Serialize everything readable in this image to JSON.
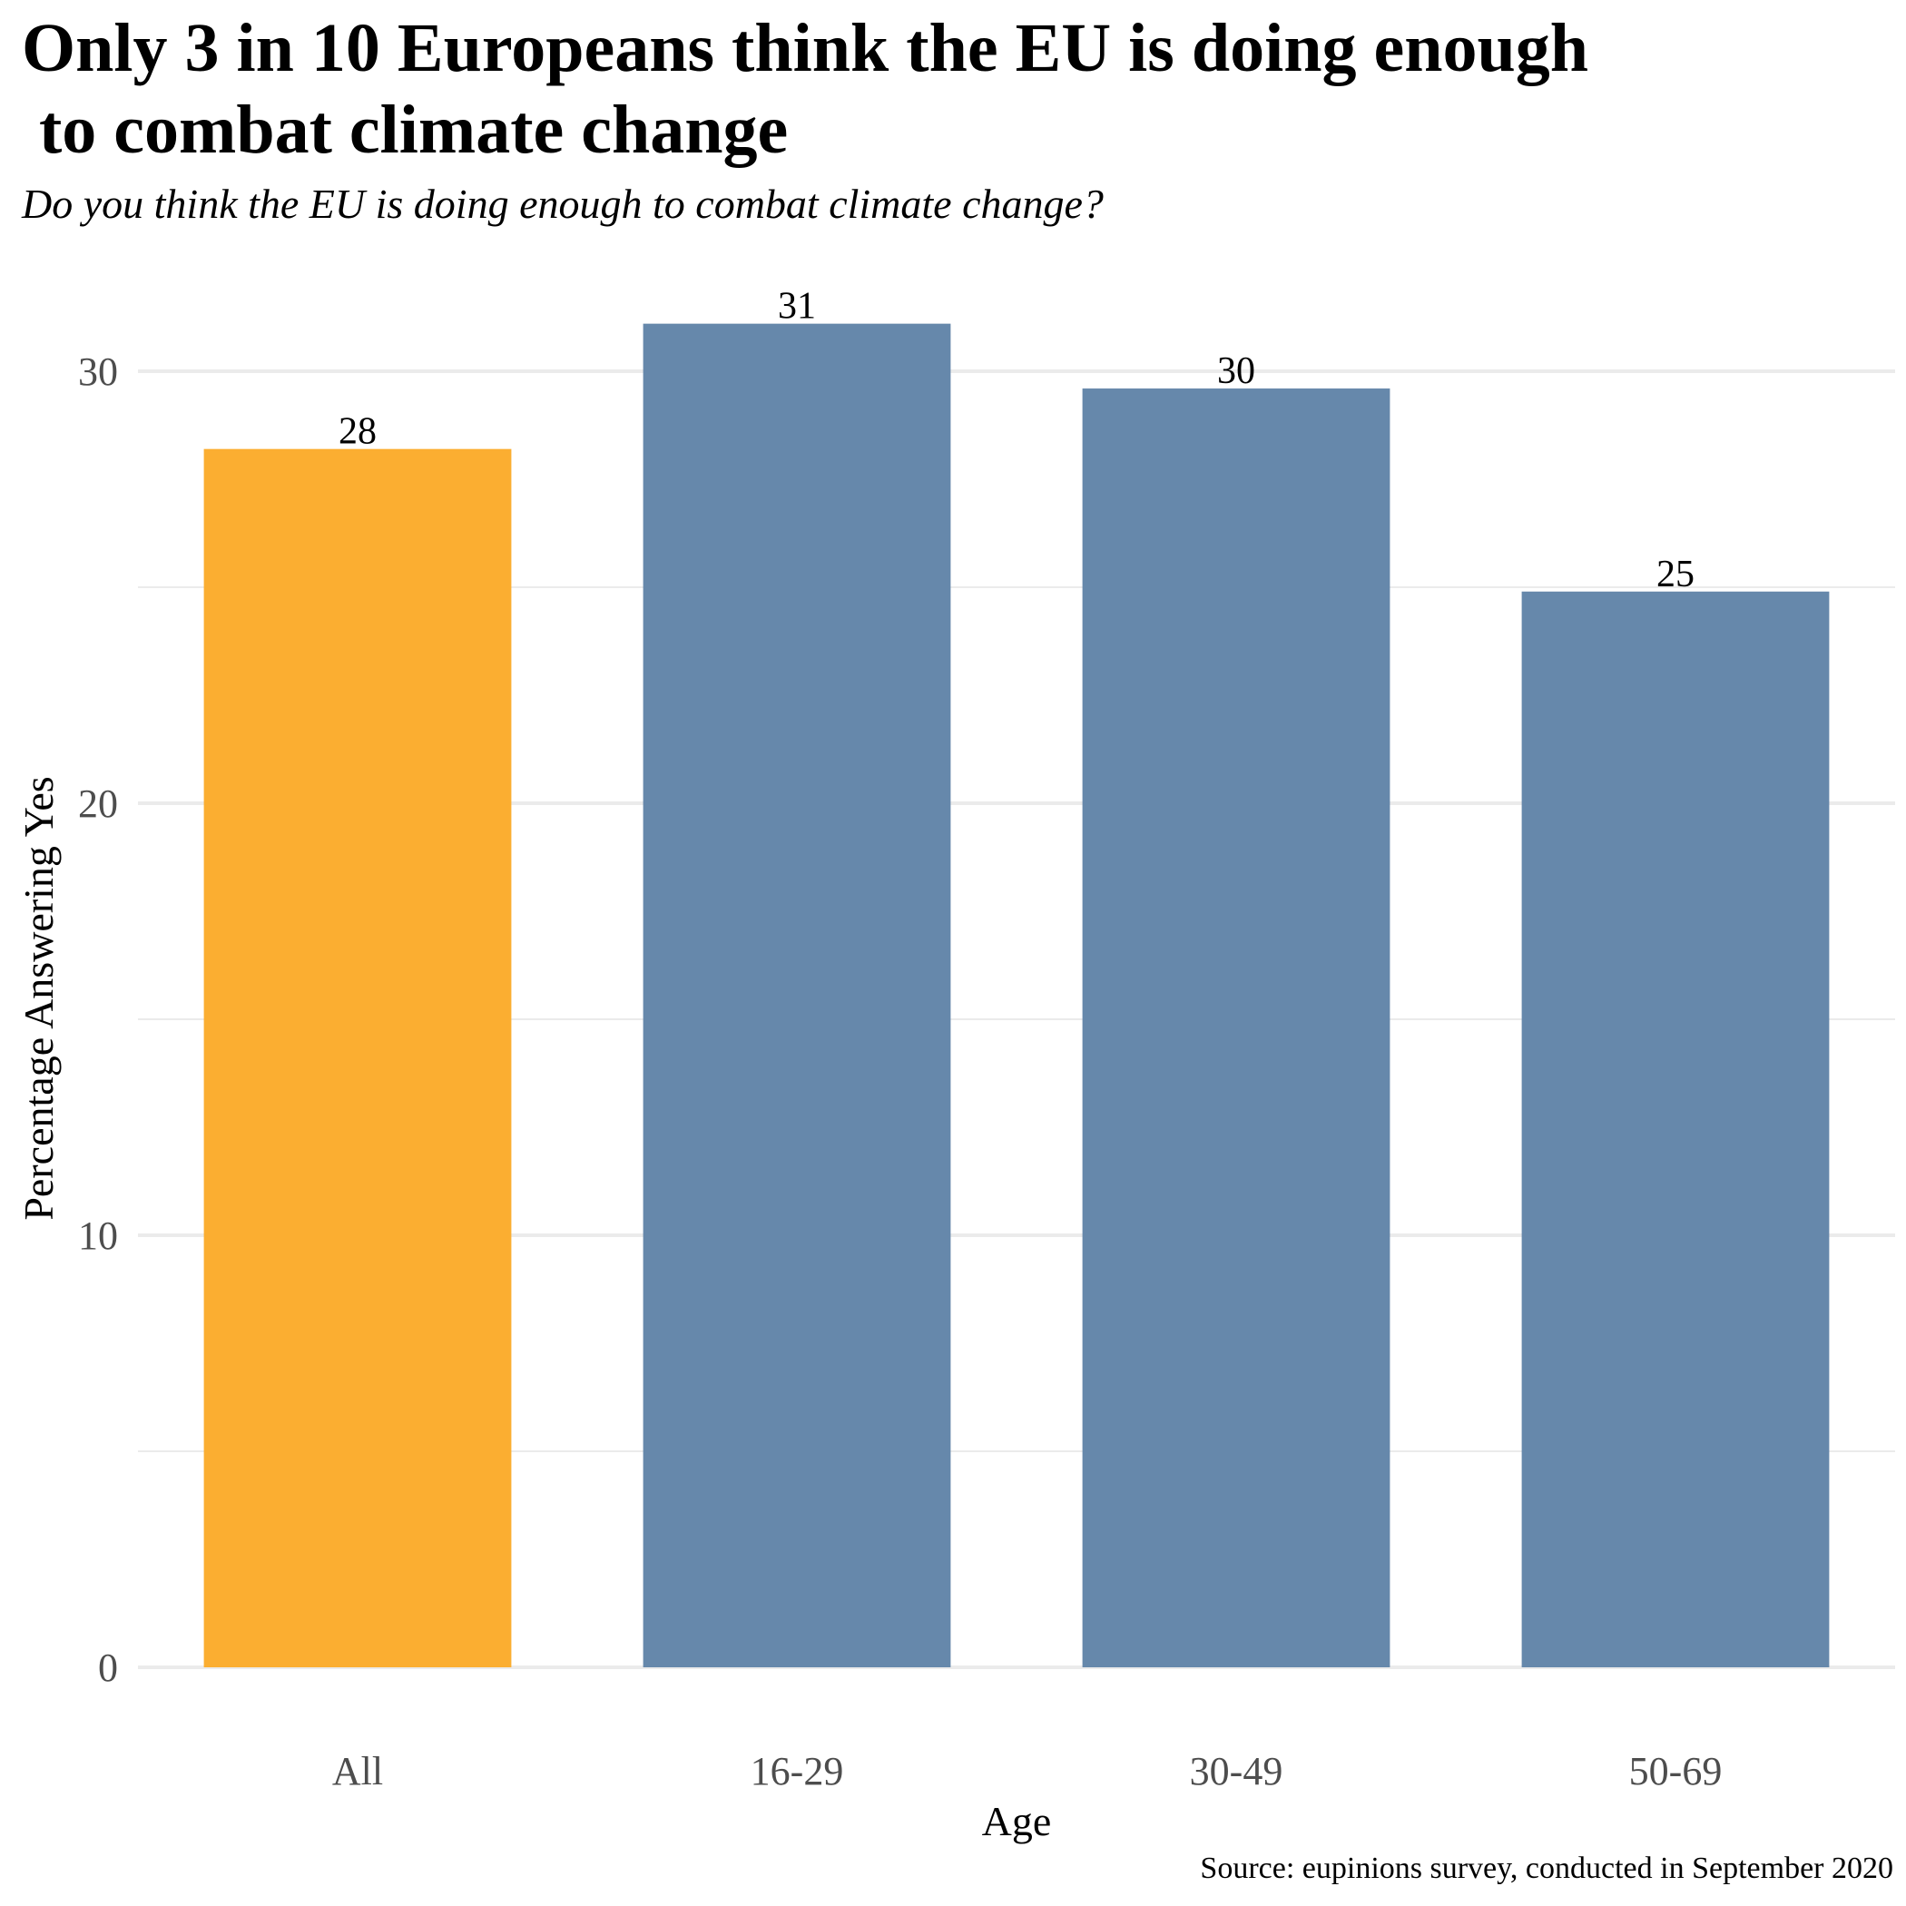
{
  "title": "Only 3 in 10 Europeans think the EU is doing enough\n to combat climate change",
  "subtitle": "Do you think the EU is doing enough to combat climate change?",
  "source": "Source: eupinions survey, conducted in September 2020",
  "chart_data": {
    "type": "bar",
    "title": "Only 3 in 10 Europeans think the EU is doing enough to combat climate change",
    "subtitle": "Do you think the EU is doing enough to combat climate change?",
    "xlabel": "Age",
    "ylabel": "Percentage Answering Yes",
    "categories": [
      "All",
      "16-29",
      "30-49",
      "50-69"
    ],
    "values": [
      28.2,
      31.1,
      29.6,
      24.9
    ],
    "data_labels": [
      "28",
      "31",
      "30",
      "25"
    ],
    "colors": [
      "#FBAE31",
      "#6688AB",
      "#6688AB",
      "#6688AB"
    ],
    "yticks": [
      0,
      10,
      20,
      30
    ],
    "ylim": [
      0,
      32
    ],
    "grid": true,
    "gridline_color": "#EBEBEB"
  }
}
